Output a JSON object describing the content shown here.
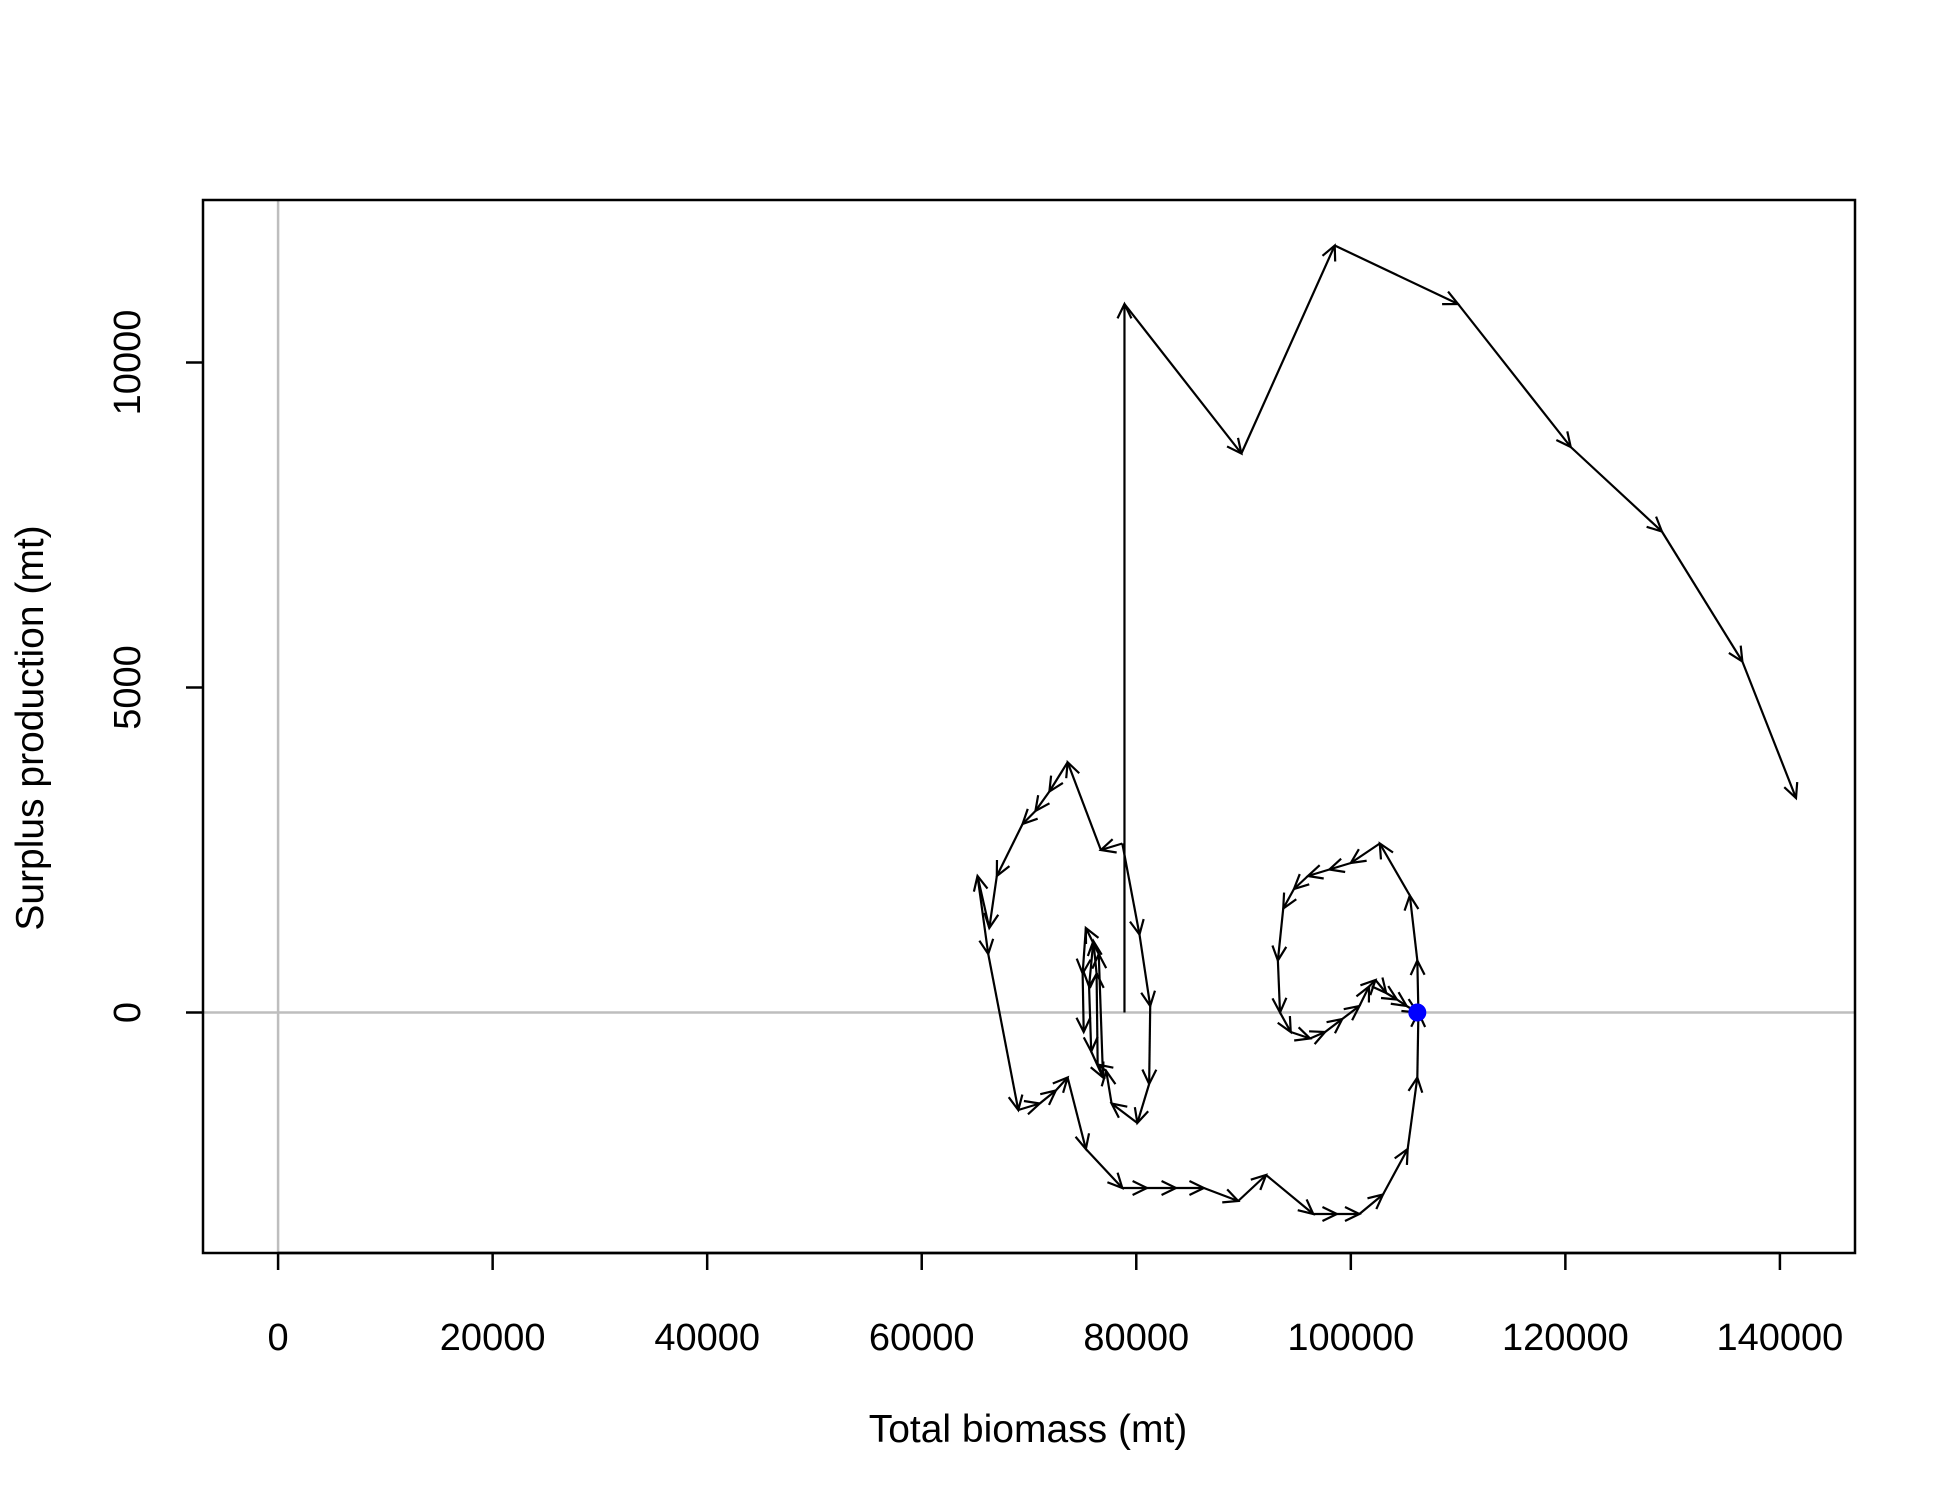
{
  "chart_data": {
    "type": "line",
    "xlabel": "Total biomass (mt)",
    "ylabel": "Surplus production (mt)",
    "xlim": [
      -7000,
      147000
    ],
    "ylim": [
      -3700,
      12500
    ],
    "x_ticks": [
      0,
      20000,
      40000,
      60000,
      80000,
      100000,
      120000,
      140000
    ],
    "y_ticks": [
      0,
      5000,
      10000
    ],
    "reference_lines": {
      "x": 0,
      "y": 0,
      "color": "#bebebe"
    },
    "line_color": "#000000",
    "arrows": true,
    "final_point": {
      "x": 106200,
      "y": 0,
      "color": "#0000ff"
    },
    "series": [
      {
        "points": [
          [
            78900,
            0
          ],
          [
            78900,
            10900
          ],
          [
            89800,
            8600
          ],
          [
            98500,
            11800
          ],
          [
            110000,
            10900
          ],
          [
            120500,
            8700
          ],
          [
            129000,
            7400
          ],
          [
            136500,
            5400
          ],
          [
            141500,
            3300
          ]
        ]
      },
      {
        "points": [
          [
            78700,
            2600
          ],
          [
            80300,
            1200
          ],
          [
            81300,
            100
          ],
          [
            81200,
            -1100
          ],
          [
            80100,
            -1700
          ],
          [
            77700,
            -1400
          ],
          [
            77200,
            -900
          ],
          [
            76400,
            -800
          ],
          [
            76300,
            600
          ],
          [
            76000,
            1100
          ],
          [
            75600,
            400
          ],
          [
            75800,
            -600
          ],
          [
            76900,
            -1000
          ],
          [
            76500,
            900
          ],
          [
            75300,
            1300
          ],
          [
            75000,
            600
          ],
          [
            75100,
            -300
          ]
        ]
      },
      {
        "points": [
          [
            78700,
            2600
          ],
          [
            76700,
            2500
          ],
          [
            73600,
            3850
          ],
          [
            71900,
            3400
          ],
          [
            70600,
            3100
          ],
          [
            69400,
            2900
          ],
          [
            67000,
            2100
          ],
          [
            66300,
            1300
          ],
          [
            65200,
            2100
          ],
          [
            66200,
            900
          ],
          [
            69000,
            -1500
          ],
          [
            71000,
            -1400
          ],
          [
            72500,
            -1200
          ],
          [
            73600,
            -1000
          ],
          [
            75300,
            -2100
          ],
          [
            78700,
            -2700
          ],
          [
            81000,
            -2700
          ],
          [
            83700,
            -2700
          ],
          [
            86300,
            -2700
          ],
          [
            89500,
            -2900
          ],
          [
            92100,
            -2500
          ],
          [
            96500,
            -3100
          ],
          [
            98700,
            -3100
          ],
          [
            100800,
            -3100
          ],
          [
            103000,
            -2800
          ],
          [
            105300,
            -2100
          ],
          [
            106200,
            -1000
          ],
          [
            106300,
            0
          ],
          [
            106200,
            800
          ],
          [
            105500,
            1800
          ],
          [
            102700,
            2600
          ],
          [
            100000,
            2300
          ],
          [
            98000,
            2200
          ],
          [
            96000,
            2100
          ],
          [
            94700,
            1900
          ],
          [
            93700,
            1600
          ],
          [
            93200,
            800
          ],
          [
            93400,
            0
          ],
          [
            94400,
            -300
          ],
          [
            96200,
            -400
          ],
          [
            97600,
            -300
          ],
          [
            99200,
            -100
          ],
          [
            100800,
            100
          ],
          [
            101700,
            400
          ],
          [
            102300,
            500
          ],
          [
            103300,
            300
          ],
          [
            104300,
            200
          ],
          [
            105200,
            100
          ],
          [
            106200,
            0
          ]
        ]
      }
    ]
  }
}
